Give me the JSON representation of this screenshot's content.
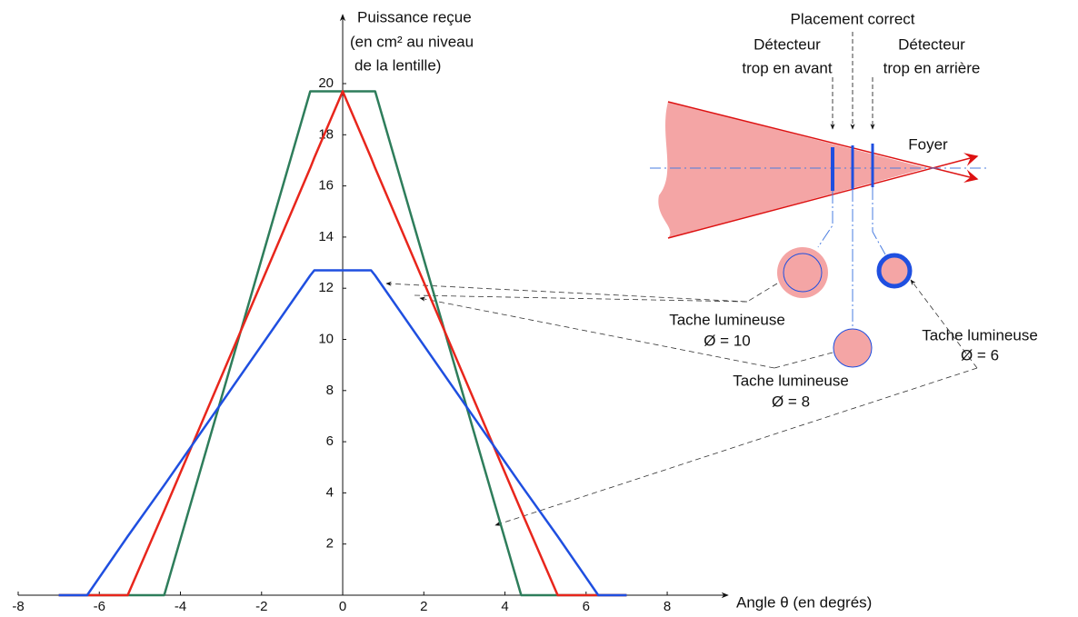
{
  "chart_data": {
    "type": "line",
    "y_label": [
      "Puissance reçue",
      "(en cm² au niveau",
      "de la lentille)"
    ],
    "x_label": "Angle θ (en degrés)",
    "x": [
      -7,
      -6.3,
      -5.3,
      -4.4,
      -0.8,
      -0.7,
      0,
      0.7,
      0.8,
      4.4,
      5.3,
      6.3,
      7
    ],
    "series": [
      {
        "color": "#2e7d5b",
        "values": [
          0,
          0,
          0,
          0,
          19.7,
          19.7,
          19.7,
          19.7,
          19.7,
          0,
          0,
          0,
          0
        ]
      },
      {
        "color": "#e8261c",
        "values": [
          0,
          0,
          0,
          3.3,
          16.7,
          17.1,
          19.7,
          17.1,
          16.7,
          3.3,
          0,
          0,
          0
        ]
      },
      {
        "color": "#1f4fe0",
        "values": [
          0,
          0,
          2.3,
          4.3,
          12.5,
          12.7,
          12.7,
          12.7,
          12.5,
          4.3,
          2.3,
          0,
          0
        ]
      }
    ],
    "xlim": [
      -8,
      9.5
    ],
    "ylim": [
      0,
      22.7
    ],
    "xticks": [
      -8,
      -6,
      -4,
      -2,
      0,
      2,
      4,
      6,
      8
    ],
    "yticks": [
      2,
      4,
      6,
      8,
      10,
      12,
      14,
      16,
      18,
      20
    ],
    "annotations": [
      {
        "lines": [
          "Placement correct"
        ]
      },
      {
        "lines": [
          "Détecteur",
          "trop en avant"
        ]
      },
      {
        "lines": [
          "Détecteur",
          "trop en arrière"
        ]
      },
      {
        "lines": [
          "Foyer"
        ]
      },
      {
        "lines": [
          "Tache lumineuse",
          "Ø = 10"
        ]
      },
      {
        "lines": [
          "Tache lumineuse",
          "Ø = 8"
        ]
      },
      {
        "lines": [
          "Tache lumineuse",
          "Ø = 6"
        ]
      }
    ]
  }
}
